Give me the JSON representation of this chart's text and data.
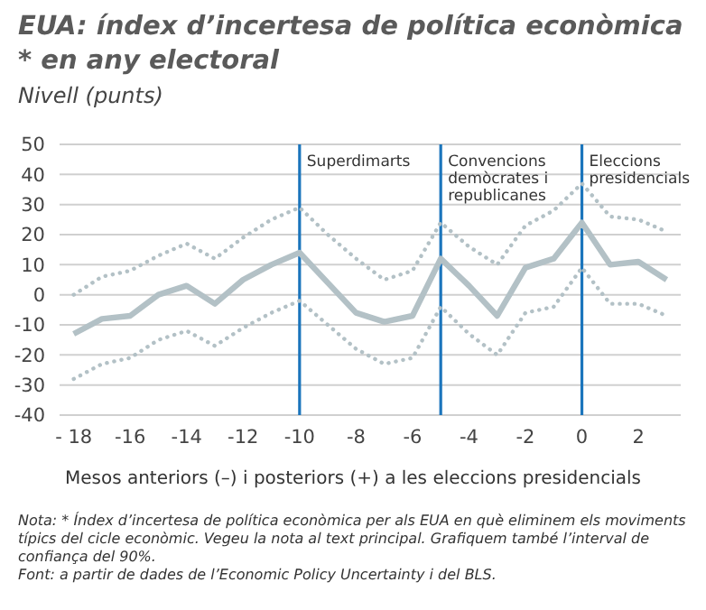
{
  "chart_data": {
    "type": "line",
    "title": "EUA: índex d’incertesa de política econòmica * en any electoral",
    "subtitle": "Nivell (punts)",
    "xlabel": "Mesos anteriors (–) i posteriors (+) a les eleccions presidencials",
    "x": [
      -18,
      -17,
      -16,
      -15,
      -14,
      -13,
      -12,
      -11,
      -10,
      -9,
      -8,
      -7,
      -6,
      -5,
      -4,
      -3,
      -2,
      -1,
      0,
      1,
      2,
      3
    ],
    "series": [
      {
        "color": "#b3c1c6",
        "line_style": "solid",
        "values": [
          -13,
          -8,
          -7,
          0,
          3,
          -3,
          5,
          10,
          14,
          4,
          -6,
          -9,
          -7,
          12,
          3,
          -7,
          9,
          12,
          24,
          10,
          11,
          5
        ]
      },
      {
        "color": "#b3c1c6",
        "line_style": "dotted",
        "values": [
          -28,
          -23,
          -21,
          -15,
          -12,
          -17,
          -11,
          -6,
          -2,
          -10,
          -18,
          -23,
          -21,
          -4,
          -13,
          -20,
          -6,
          -4,
          9,
          -3,
          -3,
          -7
        ]
      },
      {
        "color": "#b3c1c6",
        "line_style": "dotted",
        "values": [
          0,
          6,
          8,
          13,
          17,
          12,
          19,
          25,
          29,
          20,
          12,
          5,
          8,
          24,
          16,
          10,
          23,
          28,
          37,
          26,
          25,
          21
        ]
      }
    ],
    "xlim": [
      -18.5,
      3.5
    ],
    "xticks": [
      {
        "value": -18,
        "label": "- 18"
      },
      -16,
      -14,
      -12,
      -10,
      -8,
      -6,
      -4,
      -2,
      0,
      2
    ],
    "ylim": [
      -40,
      50
    ],
    "yticks": [
      -40,
      -30,
      -20,
      -10,
      0,
      10,
      20,
      30,
      40,
      50
    ],
    "grid": "y",
    "marker": "none",
    "ref_lines": [
      {
        "axis": "x",
        "value": -10,
        "label": "Superdimarts",
        "color": "#1b75bc"
      },
      {
        "axis": "x",
        "value": -5,
        "label": "Convencions demòcrates i republicanes",
        "color": "#1b75bc"
      },
      {
        "axis": "x",
        "value": 0,
        "label": "Eleccions presidencials",
        "color": "#1b75bc"
      }
    ],
    "annotations": [
      "Nota: * Índex d’incertesa de política econòmica per als EUA en què eliminem els moviments típics del cicle econòmic. Vegeu la nota al text principal. Grafiquem també l’interval de confiança del 90%.",
      "Font: a partir de dades de l’Economic Policy Uncertainty i del BLS."
    ]
  }
}
